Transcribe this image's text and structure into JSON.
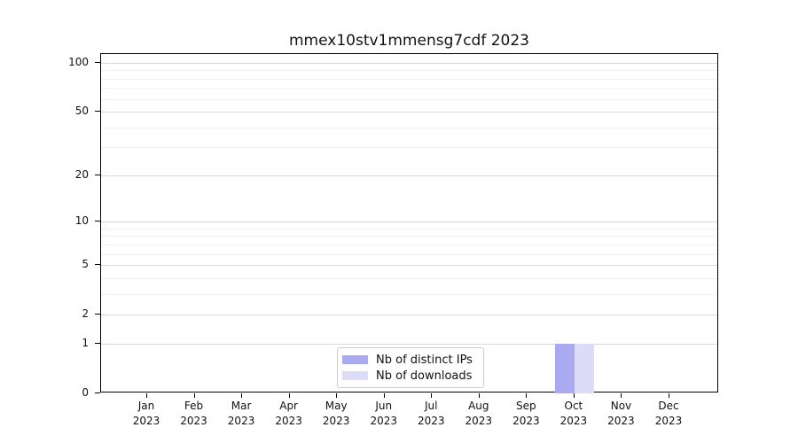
{
  "title": "mmex10stv1mmensg7cdf 2023",
  "chart_data": {
    "type": "bar",
    "title": "mmex10stv1mmensg7cdf 2023",
    "categories": [
      "Jan 2023",
      "Feb 2023",
      "Mar 2023",
      "Apr 2023",
      "May 2023",
      "Jun 2023",
      "Jul 2023",
      "Aug 2023",
      "Sep 2023",
      "Oct 2023",
      "Nov 2023",
      "Dec 2023"
    ],
    "series": [
      {
        "name": "Nb of distinct IPs",
        "color": "#aaaaf0",
        "values": [
          0,
          0,
          0,
          0,
          0,
          0,
          0,
          0,
          0,
          1,
          0,
          0
        ]
      },
      {
        "name": "Nb of downloads",
        "color": "#dcdcf8",
        "values": [
          0,
          0,
          0,
          0,
          0,
          0,
          0,
          0,
          0,
          1,
          0,
          0
        ]
      }
    ],
    "xlabel": "",
    "ylabel": "",
    "yscale": "log1p",
    "ylim": [
      0,
      113
    ],
    "y_ticks": [
      0,
      1,
      2,
      5,
      10,
      20,
      50,
      100
    ],
    "y_minor_gridlines": [
      3,
      4,
      6,
      7,
      8,
      9,
      30,
      40,
      60,
      70,
      80,
      90
    ],
    "grid": "horizontal",
    "legend_position": "lower-center",
    "colors": {
      "axis": "#000000",
      "major_grid": "#d9d9d9",
      "minor_grid": "#f0f0f0",
      "text": "#111111"
    }
  }
}
